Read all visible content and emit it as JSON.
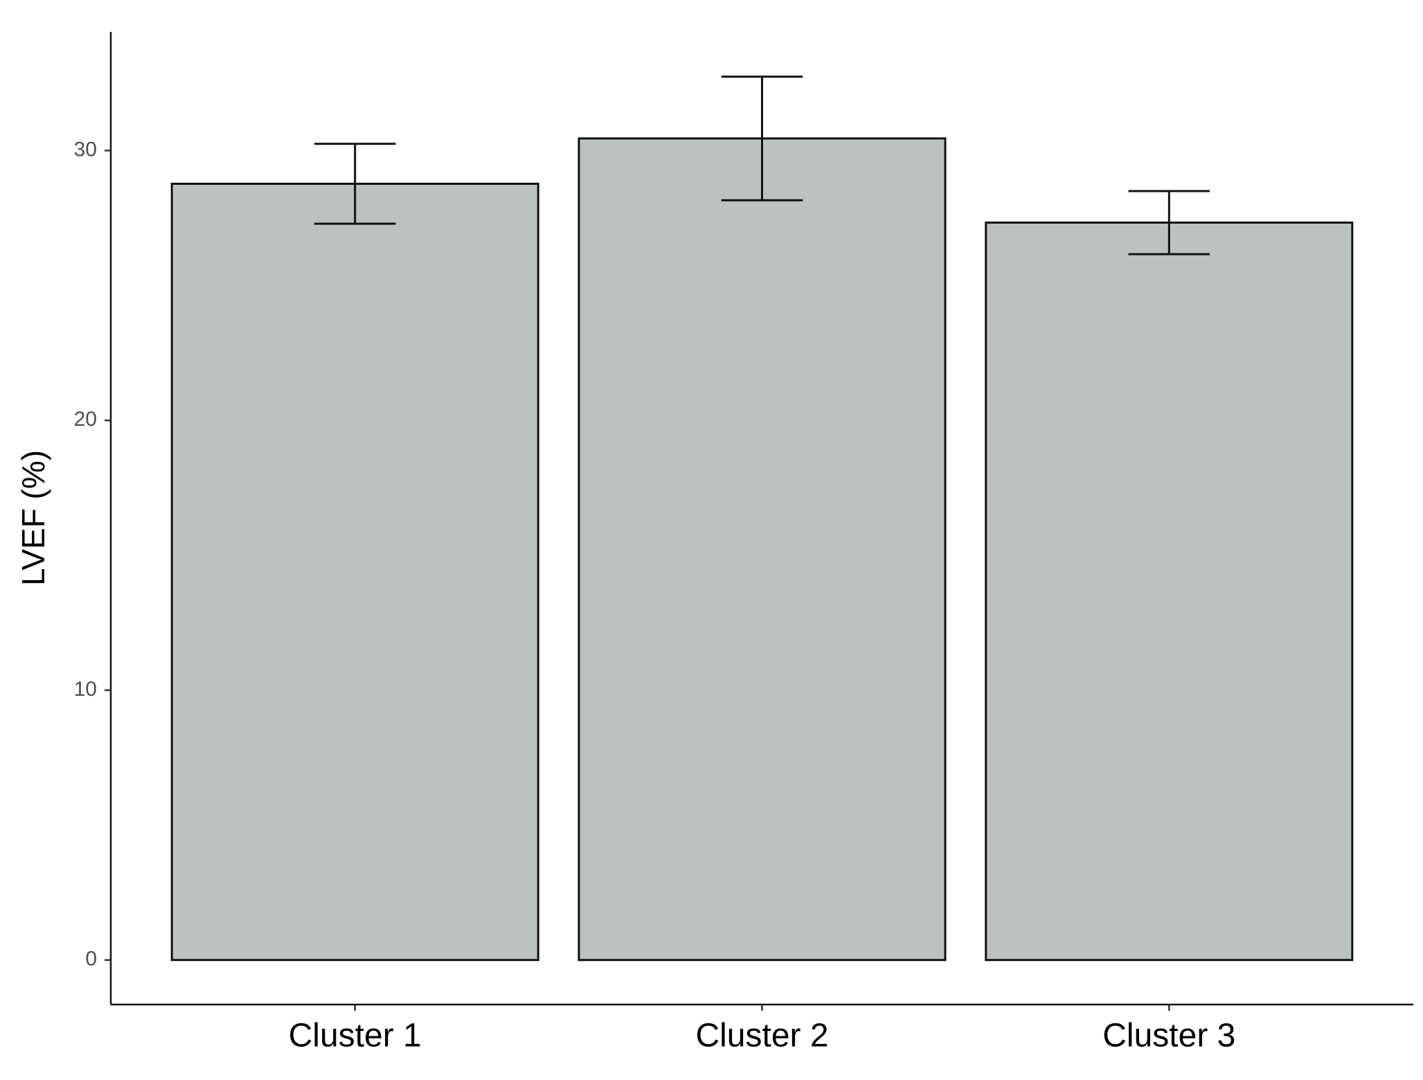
{
  "chart_data": {
    "type": "bar",
    "y_label": "LVEF (%)",
    "categories": [
      "Cluster 1",
      "Cluster 2",
      "Cluster 3"
    ],
    "values": [
      28.77,
      30.45,
      27.33
    ],
    "errors": [
      1.48,
      2.29,
      1.17
    ],
    "color": "#bcc1c1",
    "ylim": [
      -1.65,
      34.4
    ],
    "yticks": [
      0,
      10,
      20,
      30
    ],
    "grid": false
  }
}
